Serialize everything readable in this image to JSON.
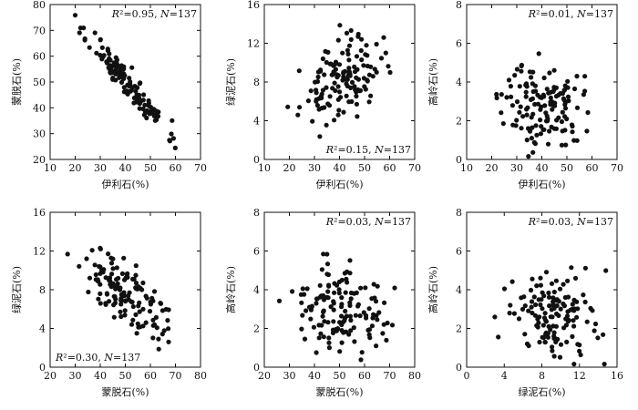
{
  "chart_data": [
    {
      "type": "scatter",
      "xlabel": "伊利石(%)",
      "ylabel": "蒙脱石(%)",
      "xlim": [
        10,
        70
      ],
      "ylim": [
        20,
        80
      ],
      "xticks": [
        10,
        20,
        30,
        40,
        50,
        60,
        70
      ],
      "yticks": [
        20,
        30,
        40,
        50,
        60,
        70,
        80
      ],
      "annotation": "R²=0.95, N=137",
      "annotation_pos": "top-right",
      "trend": {
        "kind": "negative",
        "x_range": [
          20,
          62
        ],
        "slope": -1.14,
        "intercept": 96
      },
      "n": 137,
      "seed": 11,
      "noise": 3.0
    },
    {
      "type": "scatter",
      "xlabel": "伊利石(%)",
      "ylabel": "绿泥石(%)",
      "xlim": [
        10,
        70
      ],
      "ylim": [
        0,
        16
      ],
      "xticks": [
        10,
        20,
        30,
        40,
        50,
        60,
        70
      ],
      "yticks": [
        0,
        4,
        8,
        12,
        16
      ],
      "annotation": "R²=0.15, N=137",
      "annotation_pos": "bottom-right",
      "trend": {
        "kind": "positive",
        "x_range": [
          19,
          62
        ],
        "slope": 0.1,
        "intercept": 4.0
      },
      "n": 137,
      "seed": 23,
      "noise": 1.9
    },
    {
      "type": "scatter",
      "xlabel": "伊利石(%)",
      "ylabel": "高岭石(%)",
      "xlim": [
        10,
        70
      ],
      "ylim": [
        0,
        8
      ],
      "xticks": [
        10,
        20,
        30,
        40,
        50,
        60,
        70
      ],
      "yticks": [
        0,
        2,
        4,
        6,
        8
      ],
      "annotation": "R²=0.01, N=137",
      "annotation_pos": "top-right",
      "trend": {
        "kind": "flat",
        "x_range": [
          19,
          62
        ],
        "slope": 0.005,
        "intercept": 2.6
      },
      "n": 137,
      "seed": 37,
      "noise": 1.1
    },
    {
      "type": "scatter",
      "xlabel": "蒙脱石(%)",
      "ylabel": "绿泥石(%)",
      "xlim": [
        20,
        80
      ],
      "ylim": [
        0,
        16
      ],
      "xticks": [
        20,
        30,
        40,
        50,
        60,
        70,
        80
      ],
      "yticks": [
        0,
        4,
        8,
        12,
        16
      ],
      "annotation": "R²=0.30, N=137",
      "annotation_pos": "bottom-left",
      "trend": {
        "kind": "negative",
        "x_range": [
          25,
          74
        ],
        "slope": -0.16,
        "intercept": 15.5
      },
      "n": 137,
      "seed": 51,
      "noise": 1.7
    },
    {
      "type": "scatter",
      "xlabel": "蒙脱石(%)",
      "ylabel": "高岭石(%)",
      "xlim": [
        20,
        80
      ],
      "ylim": [
        0,
        8
      ],
      "xticks": [
        20,
        30,
        40,
        50,
        60,
        70,
        80
      ],
      "yticks": [
        0,
        2,
        4,
        6,
        8
      ],
      "annotation": "R²=0.03, N=137",
      "annotation_pos": "top-right",
      "trend": {
        "kind": "flat",
        "x_range": [
          26,
          74
        ],
        "slope": -0.02,
        "intercept": 3.8
      },
      "n": 137,
      "seed": 67,
      "noise": 1.1
    },
    {
      "type": "scatter",
      "xlabel": "绿泥石(%)",
      "ylabel": "高岭石(%)",
      "xlim": [
        0,
        16
      ],
      "ylim": [
        0,
        8
      ],
      "xticks": [
        0,
        4,
        8,
        12,
        16
      ],
      "yticks": [
        0,
        2,
        4,
        6,
        8
      ],
      "annotation": "R²=0.03, N=137",
      "annotation_pos": "top-right",
      "trend": {
        "kind": "flat",
        "x_range": [
          3,
          15.5
        ],
        "slope": -0.08,
        "intercept": 3.4
      },
      "n": 137,
      "seed": 83,
      "noise": 1.1
    }
  ]
}
